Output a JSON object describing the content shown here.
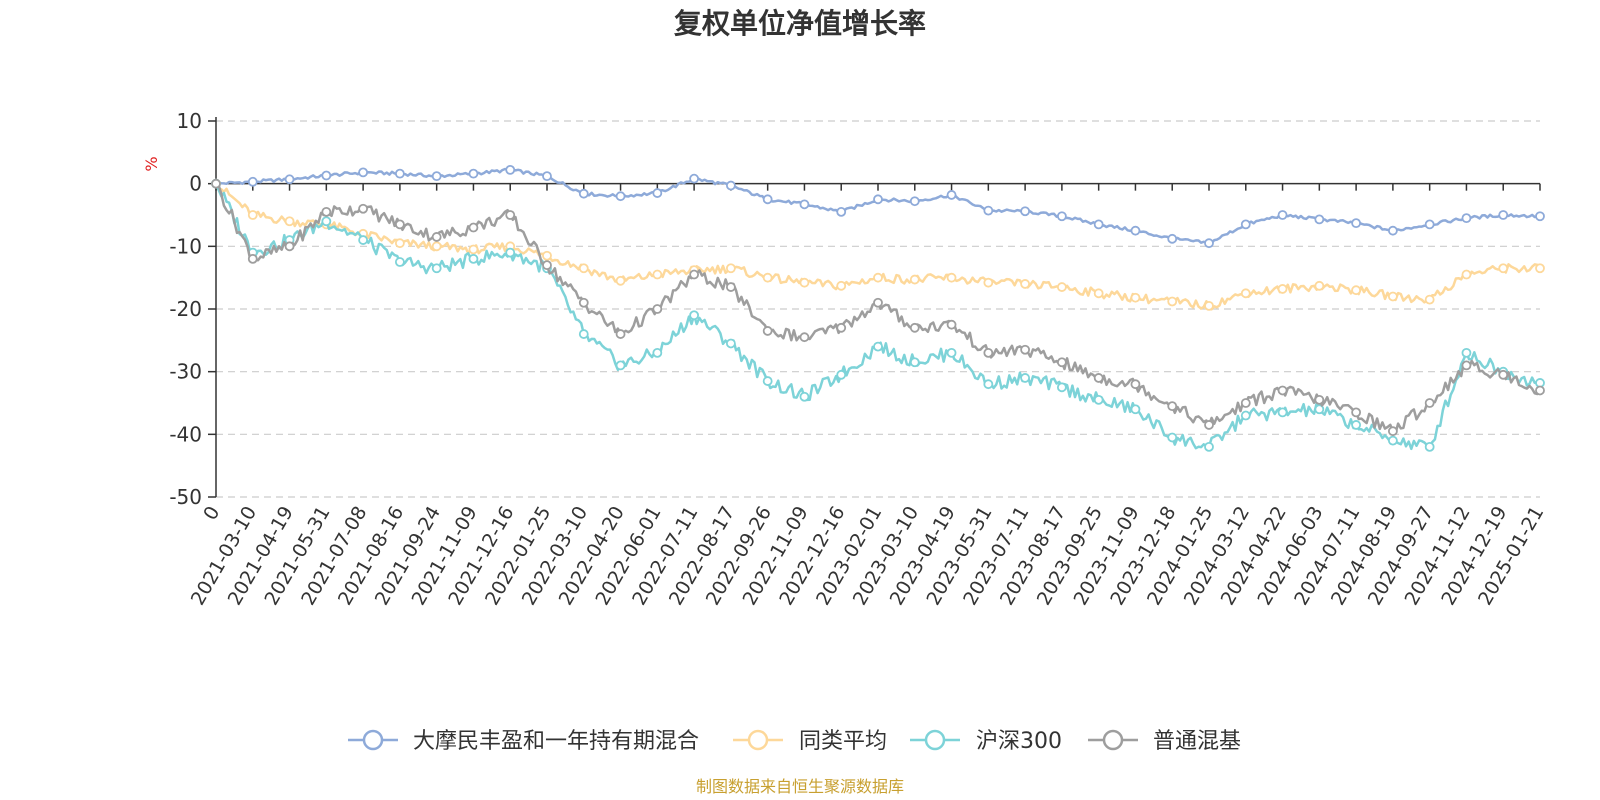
{
  "chart_data": {
    "type": "line",
    "title": "复权单位净值增长率",
    "ylabel": "%",
    "ylim": [
      -50,
      10
    ],
    "yticks": [
      10,
      0,
      -10,
      -20,
      -30,
      -40,
      -50
    ],
    "categories": [
      "0",
      "2021-03-10",
      "2021-04-19",
      "2021-05-31",
      "2021-07-08",
      "2021-08-16",
      "2021-09-24",
      "2021-11-09",
      "2021-12-16",
      "2022-01-25",
      "2022-03-10",
      "2022-04-20",
      "2022-06-01",
      "2022-07-11",
      "2022-08-17",
      "2022-09-26",
      "2022-11-09",
      "2022-12-16",
      "2023-02-01",
      "2023-03-10",
      "2023-04-19",
      "2023-05-31",
      "2023-07-11",
      "2023-08-17",
      "2023-09-25",
      "2023-11-09",
      "2023-12-18",
      "2024-01-25",
      "2024-03-12",
      "2024-04-22",
      "2024-06-03",
      "2024-07-11",
      "2024-08-19",
      "2024-09-27",
      "2024-11-12",
      "2024-12-19",
      "2025-01-21"
    ],
    "series": [
      {
        "name": "大摩民丰盈和一年持有期混合",
        "color": "#8eaad9",
        "values": [
          0,
          0.3,
          0.7,
          1.3,
          1.8,
          1.6,
          1.2,
          1.6,
          2.2,
          1.2,
          -1.6,
          -2,
          -1.5,
          0.8,
          -0.3,
          -2.5,
          -3.3,
          -4.5,
          -2.5,
          -2.8,
          -1.8,
          -4.3,
          -4.4,
          -5.2,
          -6.5,
          -7.5,
          -8.8,
          -9.5,
          -6.5,
          -5,
          -5.7,
          -6.3,
          -7.5,
          -6.5,
          -5.5,
          -5,
          -5.2
        ]
      },
      {
        "name": "同类平均",
        "color": "#fdd89a",
        "values": [
          0,
          -5,
          -6,
          -6.5,
          -8,
          -9.5,
          -10,
          -10.5,
          -10,
          -11.5,
          -13.5,
          -15.5,
          -14.5,
          -13.8,
          -13.5,
          -15,
          -15.8,
          -16.3,
          -15,
          -15.3,
          -15,
          -15.8,
          -16,
          -16.5,
          -17.5,
          -18.2,
          -18.8,
          -19.5,
          -17.5,
          -16.8,
          -16.3,
          -17,
          -18,
          -18.5,
          -14.5,
          -13.5,
          -13.5
        ]
      },
      {
        "name": "沪深300",
        "color": "#7dd3d8",
        "values": [
          0,
          -11,
          -9,
          -6,
          -9,
          -12.5,
          -13.5,
          -12,
          -11,
          -13.5,
          -24,
          -29,
          -27,
          -21,
          -25.5,
          -31.5,
          -34,
          -30.5,
          -26,
          -28.5,
          -27,
          -32,
          -31,
          -32.5,
          -34.5,
          -36,
          -40.5,
          -42,
          -37,
          -36.5,
          -36,
          -38.5,
          -41,
          -42,
          -27,
          -30,
          -31.8
        ]
      },
      {
        "name": "普通混基",
        "color": "#9e9e9e",
        "values": [
          0,
          -12,
          -10,
          -4.5,
          -4,
          -6.5,
          -8.5,
          -7,
          -5,
          -13,
          -19,
          -24,
          -20,
          -14.5,
          -16.5,
          -23.5,
          -24.5,
          -23,
          -19,
          -23,
          -22.5,
          -27,
          -26.5,
          -28.5,
          -31,
          -32,
          -35.5,
          -38.5,
          -35,
          -33,
          -34.5,
          -36.5,
          -39.5,
          -35,
          -29,
          -30.5,
          -33
        ]
      }
    ]
  },
  "legend": {
    "items": [
      {
        "label": "大摩民丰盈和一年持有期混合",
        "color": "#8eaad9"
      },
      {
        "label": "同类平均",
        "color": "#fdd89a"
      },
      {
        "label": "沪深300",
        "color": "#7dd3d8"
      },
      {
        "label": "普通混基",
        "color": "#9e9e9e"
      }
    ]
  },
  "footer": "制图数据来自恒生聚源数据库"
}
